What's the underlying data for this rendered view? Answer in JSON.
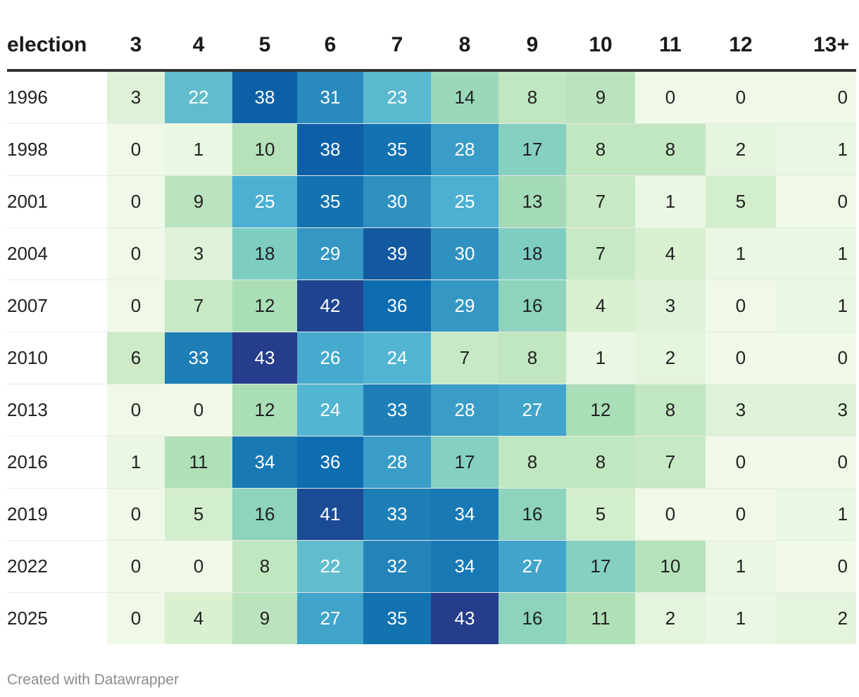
{
  "chart_data": {
    "type": "table",
    "header_label": "election",
    "columns": [
      "3",
      "4",
      "5",
      "6",
      "7",
      "8",
      "9",
      "10",
      "11",
      "12",
      "13+"
    ],
    "rows": [
      {
        "label": "1996",
        "values": [
          3,
          22,
          38,
          31,
          23,
          14,
          8,
          9,
          0,
          0,
          0
        ]
      },
      {
        "label": "1998",
        "values": [
          0,
          1,
          10,
          38,
          35,
          28,
          17,
          8,
          8,
          2,
          1
        ]
      },
      {
        "label": "2001",
        "values": [
          0,
          9,
          25,
          35,
          30,
          25,
          13,
          7,
          1,
          5,
          0
        ]
      },
      {
        "label": "2004",
        "values": [
          0,
          3,
          18,
          29,
          39,
          30,
          18,
          7,
          4,
          1,
          1
        ]
      },
      {
        "label": "2007",
        "values": [
          0,
          7,
          12,
          42,
          36,
          29,
          16,
          4,
          3,
          0,
          1
        ]
      },
      {
        "label": "2010",
        "values": [
          6,
          33,
          43,
          26,
          24,
          7,
          8,
          1,
          2,
          0,
          0
        ]
      },
      {
        "label": "2013",
        "values": [
          0,
          0,
          12,
          24,
          33,
          28,
          27,
          12,
          8,
          3,
          3
        ]
      },
      {
        "label": "2016",
        "values": [
          1,
          11,
          34,
          36,
          28,
          17,
          8,
          8,
          7,
          0,
          0
        ]
      },
      {
        "label": "2019",
        "values": [
          0,
          5,
          16,
          41,
          33,
          34,
          16,
          5,
          0,
          0,
          1
        ]
      },
      {
        "label": "2022",
        "values": [
          0,
          0,
          8,
          22,
          32,
          34,
          27,
          17,
          10,
          1,
          0
        ]
      },
      {
        "label": "2025",
        "values": [
          0,
          4,
          9,
          27,
          35,
          43,
          16,
          11,
          2,
          1,
          2
        ]
      }
    ],
    "value_range": [
      0,
      43
    ],
    "color_scale": [
      "#f0f9e8",
      "#ccebc5",
      "#a8ddb5",
      "#7bccc4",
      "#4eb3d3",
      "#2b8cbe",
      "#0868ac",
      "#253d8a"
    ],
    "text_color_dark": "#222222",
    "text_color_light": "#ffffff"
  },
  "footer": {
    "credit": "Created with Datawrapper"
  }
}
